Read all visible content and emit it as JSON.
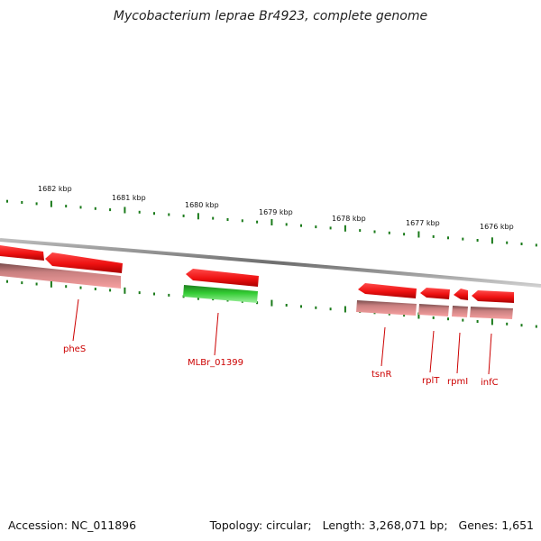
{
  "title": "Mycobacterium leprae Br4923, complete genome",
  "footer": {
    "accession": "Accession: NC_011896",
    "topology": "Topology: circular;",
    "length": "Length: 3,268,071 bp;",
    "genes": "Genes: 1,651"
  },
  "colors": {
    "backbone": "#8a8a8a",
    "tick": "#1a7a1a",
    "gene_red": "#ee1111",
    "gene_red_dark": "#b30000",
    "gene_pink": "#f08a8a",
    "gene_green": "#33cc33",
    "label_red": "#cc0000"
  },
  "kbp_labels": [
    "1682 kbp",
    "1681 kbp",
    "1680 kbp",
    "1679 kbp",
    "1678 kbp",
    "1677 kbp",
    "1676 kbp"
  ],
  "genes": [
    {
      "label": "pheS",
      "color": "red"
    },
    {
      "label": "MLBr_01399",
      "color": "green"
    },
    {
      "label": "tsnR",
      "color": "red"
    },
    {
      "label": "rplT",
      "color": "red"
    },
    {
      "label": "rpmI",
      "color": "red"
    },
    {
      "label": "infC",
      "color": "red"
    }
  ]
}
